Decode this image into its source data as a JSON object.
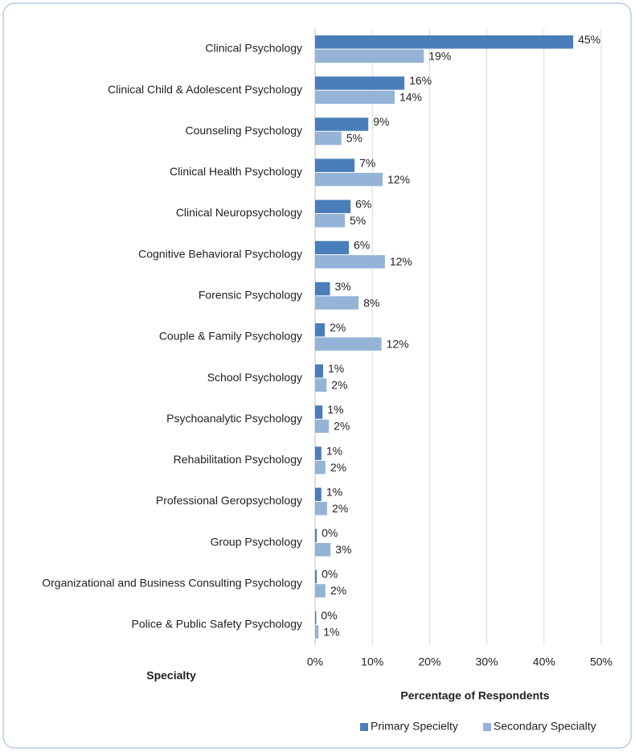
{
  "chart_data": {
    "type": "bar",
    "y_label": "Specialty",
    "x_label": "Percentage of Respondents",
    "categories": [
      "Clinical Psychology",
      "Clinical Child & Adolescent Psychology",
      "Counseling Psychology",
      "Clinical Health Psychology",
      "Clinical Neuropsychology",
      "Cognitive Behavioral Psychology",
      "Forensic Psychology",
      "Couple & Family Psychology",
      "School Psychology",
      "Psychoanalytic Psychology",
      "Rehabilitation Psychology",
      "Professional Geropsychology",
      "Group Psychology",
      "Organizational and Business Consulting Psychology",
      "Police & Public Safety Psychology"
    ],
    "series": [
      {
        "name": "Primary Specielty",
        "color": "#4a7ebb",
        "values": [
          45.1,
          15.6,
          9.3,
          6.9,
          6.2,
          5.9,
          2.6,
          1.7,
          1.4,
          1.3,
          1.1,
          1.1,
          0.3,
          0.3,
          0.2
        ],
        "value_labels": [
          "45%",
          "16%",
          "9%",
          "7%",
          "6%",
          "6%",
          "3%",
          "2%",
          "1%",
          "1%",
          "1%",
          "1%",
          "0%",
          "0%",
          "0%"
        ]
      },
      {
        "name": "Secondary Specialty",
        "color": "#95b3d7",
        "values": [
          19.0,
          13.9,
          4.6,
          11.8,
          5.2,
          12.2,
          7.6,
          11.6,
          2.0,
          2.4,
          1.8,
          2.1,
          2.7,
          1.8,
          0.6
        ],
        "value_labels": [
          "19%",
          "14%",
          "5%",
          "12%",
          "5%",
          "12%",
          "8%",
          "12%",
          "2%",
          "2%",
          "2%",
          "2%",
          "3%",
          "2%",
          "1%"
        ]
      }
    ],
    "xlim": [
      0,
      50
    ],
    "xticks": [
      {
        "value": 0,
        "label": "0%"
      },
      {
        "value": 10,
        "label": "10%"
      },
      {
        "value": 20,
        "label": "20%"
      },
      {
        "value": 30,
        "label": "30%"
      },
      {
        "value": 40,
        "label": "40%"
      },
      {
        "value": 50,
        "label": "50%"
      }
    ],
    "grid": true,
    "legend": "bottom"
  }
}
